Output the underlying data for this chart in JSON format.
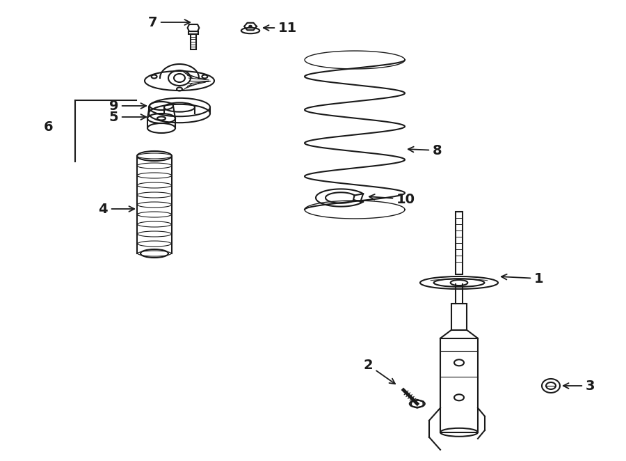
{
  "bg_color": "#ffffff",
  "line_color": "#1a1a1a",
  "label_color": "#000000",
  "figsize": [
    9.0,
    6.62
  ],
  "dpi": 100
}
